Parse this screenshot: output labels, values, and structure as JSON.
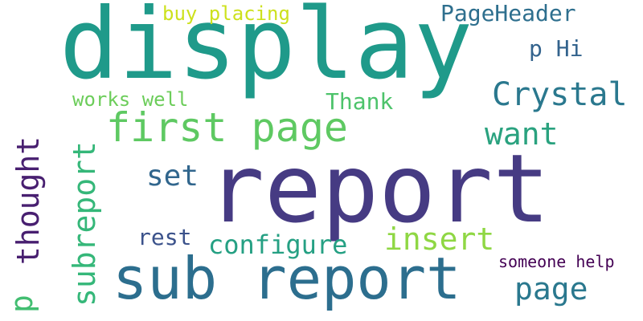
{
  "words": {
    "report": "report",
    "display": "display",
    "sub_report": "sub report",
    "first_page": "first page",
    "crystal": "Crystal",
    "want": "want",
    "insert": "insert",
    "page": "page",
    "set": "set",
    "configure": "configure",
    "pageheader": "PageHeader",
    "thank": "Thank",
    "rest": "rest",
    "p_hi": "p Hi",
    "buy_placing": "buy placing",
    "works_well": "works well",
    "someone_help": "someone help",
    "subreport": "subreport",
    "thought": "thought",
    "p": "p"
  },
  "colors": {
    "report": "#463b83",
    "display": "#1f9a8a",
    "sub_report": "#2c6e8e",
    "first_page": "#5ec962",
    "crystal": "#2a788e",
    "want": "#2aa27f",
    "insert": "#8fd744",
    "page": "#2a788e",
    "set": "#31668d",
    "configure": "#25a083",
    "pageheader": "#2e6f8e",
    "thank": "#4dc36b",
    "rest": "#3b528b",
    "p_hi": "#33638d",
    "buy_placing": "#cde11d",
    "works_well": "#6ccd5a",
    "someone_help": "#440154",
    "subreport": "#35b779",
    "thought": "#481f70",
    "p": "#42be71"
  }
}
